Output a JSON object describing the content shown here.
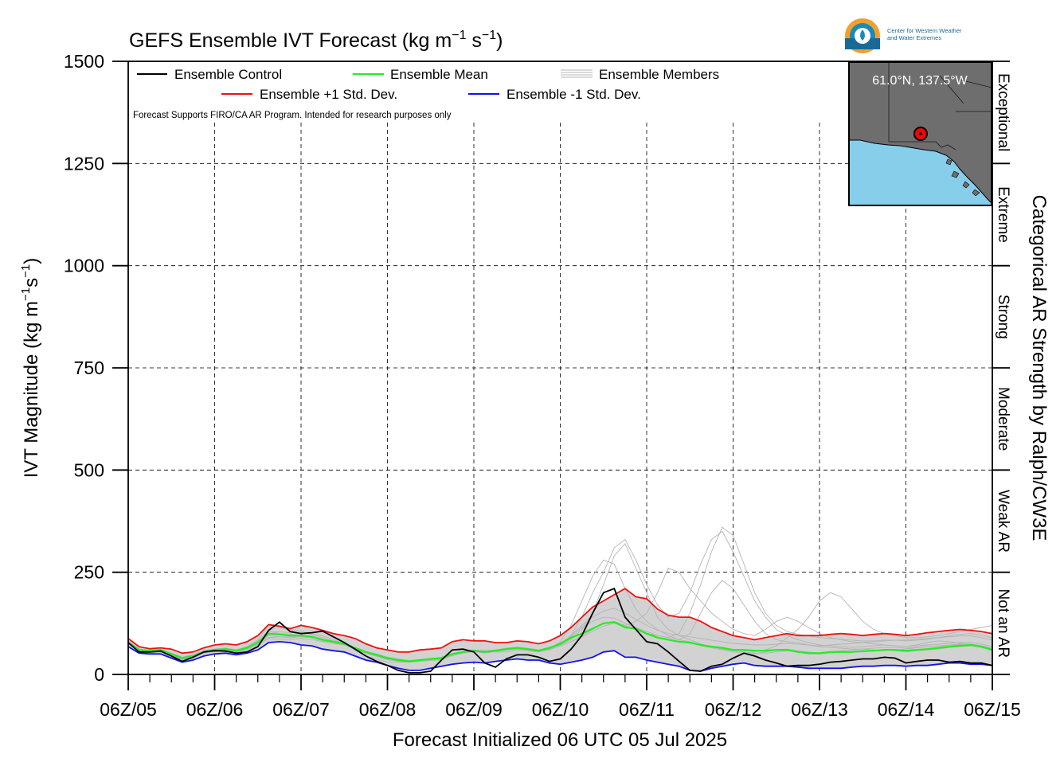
{
  "chart_data": {
    "type": "line",
    "title_main": "GEFS Ensemble IVT Forecast (kg m",
    "title_exp1": "−1",
    "title_mid": " s",
    "title_exp2": "−1",
    "title_end": ")",
    "ylabel_main": "IVT Magnitude (kg m",
    "ylabel_exp1": "−1",
    "ylabel_mid": "s",
    "ylabel_exp2": "−1",
    "ylabel_end": ")",
    "xlabel": "Forecast Initialized 06 UTC 05 Jul 2025",
    "right_axis_label": "Categorical AR Strength by Ralph/CW3E",
    "note": "Forecast Supports FIRO/CA AR Program. Intended for research purposes only",
    "ylim": [
      0,
      1500
    ],
    "yticks": [
      0,
      250,
      500,
      750,
      1000,
      1250,
      1500
    ],
    "ytick_labels": [
      "0",
      "250",
      "500",
      "750",
      "1000",
      "1250",
      "1500"
    ],
    "xlim": [
      0,
      240
    ],
    "xticks": [
      0,
      24,
      48,
      72,
      96,
      120,
      144,
      168,
      192,
      216,
      240
    ],
    "xtick_labels": [
      "06Z/05",
      "06Z/06",
      "06Z/07",
      "06Z/08",
      "06Z/09",
      "06Z/10",
      "06Z/11",
      "06Z/12",
      "06Z/13",
      "06Z/14",
      "06Z/15"
    ],
    "x_units": "forecast hours since 06 UTC 05 Jul 2025",
    "grid": true,
    "legend_position": "top-left",
    "categories": [
      {
        "label": "Not an AR",
        "min": 0,
        "max": 250
      },
      {
        "label": "Weak AR",
        "min": 250,
        "max": 500
      },
      {
        "label": "Moderate",
        "min": 500,
        "max": 750
      },
      {
        "label": "Strong",
        "min": 750,
        "max": 1000
      },
      {
        "label": "Extreme",
        "min": 1000,
        "max": 1250
      },
      {
        "label": "Exceptional",
        "min": 1250,
        "max": 1500
      }
    ],
    "x": [
      0,
      3,
      6,
      9,
      12,
      15,
      18,
      21,
      24,
      27,
      30,
      33,
      36,
      39,
      42,
      45,
      48,
      51,
      54,
      57,
      60,
      63,
      66,
      69,
      72,
      75,
      78,
      81,
      84,
      87,
      90,
      93,
      96,
      99,
      102,
      105,
      108,
      111,
      114,
      117,
      120,
      123,
      126,
      129,
      132,
      135,
      138,
      141,
      144,
      147,
      150,
      153,
      156,
      159,
      162,
      165,
      168,
      171,
      174,
      177,
      180,
      183,
      186,
      189,
      192,
      195,
      198,
      201,
      204,
      207,
      210,
      213,
      216,
      219,
      222,
      225,
      228,
      231,
      234,
      237,
      240
    ],
    "series": [
      {
        "name": "Ensemble Control",
        "color": "#000000",
        "values": [
          78,
          55,
          55,
          57,
          45,
          32,
          42,
          55,
          58,
          57,
          52,
          55,
          68,
          108,
          128,
          105,
          100,
          102,
          106,
          92,
          78,
          62,
          45,
          32,
          22,
          10,
          4,
          4,
          8,
          35,
          60,
          62,
          55,
          28,
          18,
          38,
          48,
          48,
          42,
          32,
          38,
          62,
          95,
          150,
          200,
          210,
          140,
          110,
          80,
          75,
          55,
          32,
          10,
          8,
          20,
          25,
          40,
          52,
          45,
          35,
          28,
          20,
          22,
          22,
          25,
          30,
          32,
          35,
          38,
          38,
          42,
          40,
          28,
          32,
          35,
          35,
          30,
          32,
          28,
          28,
          22
        ]
      },
      {
        "name": "Ensemble Mean",
        "color": "#22ee22",
        "values": [
          78,
          60,
          58,
          60,
          50,
          40,
          45,
          55,
          60,
          62,
          58,
          65,
          78,
          100,
          98,
          95,
          95,
          92,
          85,
          80,
          75,
          65,
          55,
          48,
          40,
          35,
          32,
          35,
          38,
          40,
          50,
          55,
          58,
          55,
          58,
          62,
          65,
          62,
          58,
          65,
          75,
          90,
          100,
          112,
          125,
          128,
          115,
          112,
          100,
          90,
          85,
          80,
          78,
          72,
          68,
          65,
          60,
          60,
          58,
          58,
          60,
          60,
          55,
          52,
          52,
          55,
          55,
          55,
          57,
          58,
          60,
          60,
          58,
          60,
          62,
          65,
          68,
          70,
          72,
          68,
          60
        ]
      },
      {
        "name": "Ensemble +1 Std. Dev.",
        "color": "#ee1111",
        "values": [
          88,
          68,
          63,
          65,
          62,
          52,
          55,
          65,
          72,
          75,
          72,
          80,
          95,
          122,
          118,
          112,
          120,
          115,
          108,
          100,
          95,
          88,
          75,
          65,
          60,
          55,
          55,
          60,
          62,
          65,
          80,
          85,
          82,
          82,
          78,
          78,
          82,
          80,
          75,
          82,
          95,
          115,
          140,
          165,
          180,
          195,
          210,
          190,
          185,
          160,
          145,
          140,
          140,
          130,
          115,
          105,
          95,
          90,
          85,
          90,
          95,
          100,
          95,
          95,
          95,
          98,
          100,
          98,
          95,
          98,
          100,
          98,
          95,
          98,
          102,
          105,
          108,
          110,
          108,
          105,
          100
        ]
      },
      {
        "name": "Ensemble -1 Std. Dev.",
        "color": "#1111ee",
        "values": [
          68,
          52,
          50,
          50,
          40,
          30,
          35,
          45,
          50,
          52,
          48,
          52,
          60,
          78,
          80,
          78,
          72,
          70,
          62,
          58,
          55,
          45,
          35,
          30,
          22,
          15,
          10,
          10,
          15,
          20,
          25,
          28,
          30,
          28,
          32,
          35,
          38,
          35,
          35,
          28,
          25,
          30,
          35,
          42,
          55,
          58,
          42,
          42,
          35,
          30,
          25,
          20,
          10,
          8,
          15,
          20,
          25,
          28,
          22,
          20,
          20,
          20,
          18,
          15,
          15,
          15,
          15,
          18,
          20,
          20,
          22,
          22,
          20,
          22,
          22,
          25,
          28,
          28,
          25,
          25,
          22
        ]
      }
    ],
    "members_label": "Ensemble Members",
    "members_color": "#b4b4b4",
    "members": [
      [
        80,
        58,
        55,
        58,
        48,
        36,
        45,
        55,
        62,
        60,
        55,
        68,
        85,
        120,
        115,
        110,
        105,
        100,
        95,
        85,
        75,
        60,
        45,
        38,
        30,
        30,
        30,
        35,
        38,
        42,
        50,
        55,
        60,
        58,
        55,
        55,
        60,
        58,
        55,
        62,
        80,
        120,
        180,
        240,
        280,
        270,
        210,
        160,
        130,
        110,
        95,
        85,
        80,
        70,
        65,
        60,
        55,
        52,
        50,
        55,
        60,
        62,
        58,
        55,
        52,
        55,
        58,
        60,
        62,
        60,
        58,
        60,
        62,
        65,
        68,
        70,
        72,
        72,
        70,
        66,
        60
      ],
      [
        75,
        55,
        52,
        55,
        46,
        40,
        42,
        52,
        58,
        60,
        55,
        62,
        75,
        95,
        92,
        90,
        92,
        90,
        82,
        78,
        72,
        62,
        52,
        45,
        38,
        34,
        32,
        35,
        38,
        40,
        48,
        52,
        56,
        52,
        56,
        60,
        62,
        60,
        55,
        62,
        72,
        85,
        110,
        150,
        220,
        290,
        320,
        260,
        200,
        140,
        110,
        95,
        85,
        75,
        68,
        62,
        58,
        55,
        52,
        52,
        55,
        58,
        55,
        50,
        50,
        52,
        55,
        55,
        55,
        58,
        60,
        58,
        55,
        58,
        60,
        62,
        66,
        68,
        70,
        66,
        58
      ],
      [
        82,
        62,
        60,
        62,
        52,
        42,
        48,
        58,
        62,
        64,
        60,
        66,
        80,
        105,
        100,
        98,
        96,
        94,
        86,
        80,
        74,
        66,
        56,
        48,
        40,
        36,
        32,
        34,
        36,
        38,
        48,
        54,
        58,
        56,
        60,
        64,
        66,
        62,
        58,
        64,
        74,
        95,
        140,
        200,
        250,
        310,
        330,
        280,
        220,
        170,
        140,
        150,
        200,
        270,
        330,
        350,
        300,
        240,
        180,
        140,
        110,
        95,
        85,
        78,
        72,
        70,
        68,
        66,
        68,
        70,
        72,
        70,
        68,
        70,
        72,
        74,
        76,
        78,
        78,
        74,
        68
      ],
      [
        76,
        58,
        56,
        58,
        48,
        38,
        44,
        54,
        58,
        60,
        56,
        62,
        74,
        90,
        92,
        92,
        94,
        90,
        84,
        80,
        76,
        66,
        56,
        50,
        42,
        38,
        34,
        36,
        38,
        40,
        50,
        56,
        60,
        56,
        58,
        62,
        64,
        62,
        58,
        62,
        70,
        80,
        92,
        105,
        118,
        125,
        120,
        130,
        150,
        200,
        260,
        250,
        210,
        180,
        150,
        130,
        110,
        100,
        95,
        110,
        130,
        140,
        130,
        115,
        100,
        90,
        85,
        80,
        78,
        75,
        72,
        70,
        68,
        72,
        78,
        82,
        80,
        76,
        72,
        68,
        62
      ],
      [
        78,
        60,
        56,
        58,
        50,
        38,
        44,
        54,
        60,
        62,
        58,
        64,
        76,
        98,
        96,
        96,
        96,
        92,
        86,
        80,
        74,
        64,
        54,
        46,
        38,
        34,
        32,
        34,
        36,
        38,
        48,
        54,
        58,
        56,
        58,
        62,
        64,
        62,
        58,
        64,
        74,
        92,
        115,
        130,
        140,
        138,
        125,
        115,
        105,
        95,
        90,
        85,
        100,
        150,
        200,
        230,
        210,
        170,
        130,
        100,
        85,
        80,
        78,
        72,
        68,
        66,
        64,
        62,
        62,
        64,
        66,
        66,
        64,
        66,
        68,
        70,
        72,
        74,
        74,
        70,
        64
      ],
      [
        80,
        60,
        58,
        60,
        50,
        40,
        46,
        56,
        60,
        62,
        58,
        64,
        78,
        100,
        98,
        96,
        96,
        92,
        86,
        80,
        74,
        64,
        54,
        46,
        38,
        34,
        32,
        34,
        36,
        38,
        48,
        54,
        58,
        56,
        58,
        62,
        64,
        62,
        58,
        64,
        74,
        88,
        100,
        112,
        125,
        128,
        118,
        110,
        100,
        95,
        90,
        100,
        150,
        220,
        300,
        360,
        340,
        270,
        200,
        150,
        120,
        105,
        98,
        94,
        90,
        88,
        86,
        84,
        82,
        82,
        84,
        84,
        82,
        84,
        86,
        90,
        94,
        98,
        100,
        96,
        90
      ],
      [
        74,
        56,
        54,
        56,
        46,
        36,
        42,
        52,
        56,
        58,
        54,
        60,
        72,
        88,
        86,
        86,
        88,
        86,
        80,
        76,
        72,
        62,
        52,
        44,
        36,
        32,
        30,
        32,
        34,
        36,
        46,
        52,
        56,
        54,
        56,
        60,
        62,
        60,
        56,
        60,
        70,
        80,
        95,
        110,
        125,
        130,
        120,
        110,
        98,
        90,
        84,
        80,
        78,
        72,
        68,
        64,
        60,
        58,
        56,
        60,
        70,
        90,
        110,
        140,
        180,
        200,
        190,
        160,
        130,
        110,
        100,
        95,
        90,
        90,
        92,
        95,
        100,
        105,
        110,
        115,
        120
      ],
      [
        82,
        62,
        58,
        60,
        52,
        42,
        48,
        58,
        62,
        64,
        60,
        68,
        82,
        105,
        104,
        102,
        102,
        98,
        90,
        82,
        76,
        66,
        56,
        48,
        40,
        36,
        34,
        36,
        38,
        40,
        50,
        56,
        60,
        58,
        60,
        64,
        66,
        64,
        60,
        66,
        76,
        95,
        120,
        140,
        155,
        162,
        150,
        135,
        120,
        108,
        100,
        96,
        92,
        88,
        84,
        80,
        76,
        74,
        72,
        72,
        74,
        76,
        74,
        72,
        70,
        72,
        74,
        76,
        78,
        80,
        82,
        84,
        84,
        86,
        88,
        90,
        92,
        94,
        94,
        90,
        84
      ]
    ],
    "inset": {
      "location_label": "61.0°N, 137.5°W",
      "lat": 61.0,
      "lon": -137.5,
      "land_color": "#6e6e6e",
      "ocean_color": "#87ceeb"
    },
    "logo_text": [
      "Center for Western Weather",
      "and Water Extremes"
    ]
  }
}
